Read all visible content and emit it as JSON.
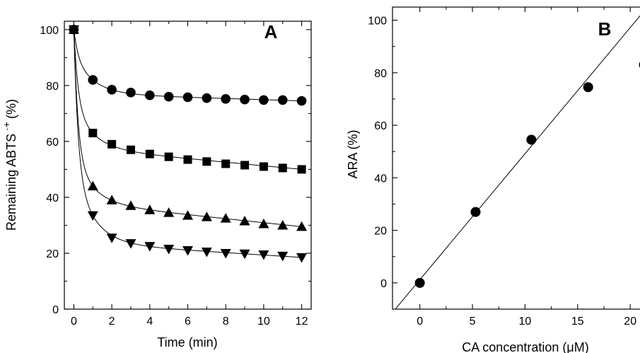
{
  "chart_data": [
    {
      "id": "A",
      "type": "scatter",
      "panel_label": "A",
      "xlabel": "Time (min)",
      "ylabel_main": "Remaining ABTS",
      "ylabel_sup": "·+",
      "ylabel_unit": "(%)",
      "xlim": [
        -0.5,
        12.5
      ],
      "ylim": [
        0,
        103
      ],
      "xticks": [
        0,
        2,
        4,
        6,
        8,
        10,
        12
      ],
      "xticks_minor": [
        1,
        3,
        5,
        7,
        9,
        11
      ],
      "yticks": [
        0,
        20,
        40,
        60,
        80,
        100
      ],
      "yticks_minor": [
        10,
        30,
        50,
        70,
        90
      ],
      "x": [
        0,
        1,
        2,
        3,
        4,
        5,
        6,
        7,
        8,
        9,
        10,
        11,
        12
      ],
      "fit_curves": true,
      "series": [
        {
          "marker": "circle",
          "values": [
            100,
            82,
            78.5,
            77.5,
            76.5,
            76,
            75.8,
            75.5,
            75.2,
            75,
            74.8,
            74.8,
            74.5
          ]
        },
        {
          "marker": "square",
          "values": [
            100,
            63,
            59,
            57,
            55.5,
            54.5,
            53.5,
            52.8,
            52,
            51.5,
            51,
            50.5,
            50
          ]
        },
        {
          "marker": "triangle-up",
          "values": [
            100,
            44,
            39,
            37,
            35.5,
            34.5,
            33.5,
            33,
            32.5,
            31.5,
            30.5,
            30,
            29.5
          ]
        },
        {
          "marker": "triangle-down",
          "values": [
            100,
            33.5,
            25.5,
            23.5,
            22.5,
            21.5,
            21,
            20.5,
            20,
            19.8,
            19.5,
            19,
            18.5
          ]
        }
      ]
    },
    {
      "id": "B",
      "type": "scatter",
      "panel_label": "B",
      "xlabel": "CA concentration (μM)",
      "ylabel": "ARA (%)",
      "xlim": [
        -2.6,
        21.6
      ],
      "ylim": [
        -10,
        105
      ],
      "xticks": [
        0,
        5,
        10,
        15,
        20
      ],
      "xticks_minor": [
        2.5,
        7.5,
        12.5,
        17.5
      ],
      "yticks": [
        0,
        20,
        40,
        60,
        80,
        100
      ],
      "yticks_minor": [
        10,
        30,
        50,
        70,
        90
      ],
      "points": [
        {
          "x": 0,
          "y": 0
        },
        {
          "x": 5.3,
          "y": 27
        },
        {
          "x": 10.6,
          "y": 54.5
        },
        {
          "x": 16,
          "y": 74.5
        },
        {
          "x": 21.3,
          "y": 83
        }
      ],
      "regression": {
        "slope": 4.8,
        "intercept": 1.2,
        "x_range": [
          -2.6,
          21.6
        ]
      }
    }
  ]
}
